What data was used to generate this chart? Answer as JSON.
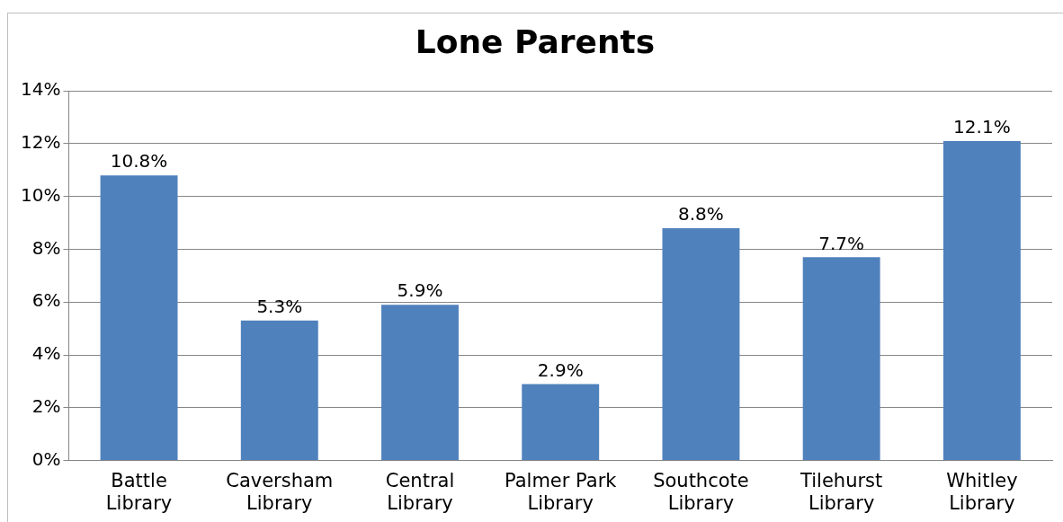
{
  "chart_data": {
    "type": "bar",
    "title": "Lone Parents",
    "categories": [
      "Battle Library",
      "Caversham Library",
      "Central Library",
      "Palmer Park Library",
      "Southcote Library",
      "Tilehurst Library",
      "Whitley Library"
    ],
    "values": [
      10.8,
      5.3,
      5.9,
      2.9,
      8.8,
      7.7,
      12.1
    ],
    "value_labels": [
      "10.8%",
      "5.3%",
      "5.9%",
      "2.9%",
      "8.8%",
      "7.7%",
      "12.1%"
    ],
    "color": "#4f81bd",
    "ylim": [
      0,
      14
    ],
    "yticks": [
      {
        "value": 0,
        "label": "0%"
      },
      {
        "value": 2,
        "label": "2%"
      },
      {
        "value": 4,
        "label": "4%"
      },
      {
        "value": 6,
        "label": "6%"
      },
      {
        "value": 8,
        "label": "8%"
      },
      {
        "value": 10,
        "label": "10%"
      },
      {
        "value": 12,
        "label": "12%"
      },
      {
        "value": 14,
        "label": "14%"
      }
    ],
    "grid": "y",
    "legend": false
  }
}
